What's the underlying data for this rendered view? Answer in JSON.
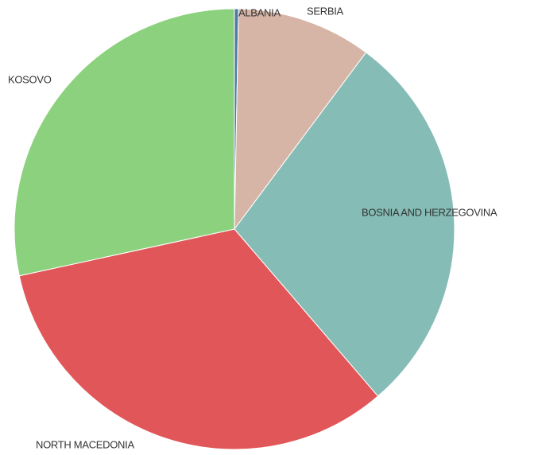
{
  "chart_data": {
    "type": "pie",
    "categories": [
      "ALBANIA",
      "SERBIA",
      "BOSNIA AND HERZEGOVINA",
      "NORTH MACEDONIA",
      "KOSOVO"
    ],
    "values": [
      0.3,
      9.9,
      28.5,
      32.9,
      28.4
    ],
    "colors": [
      "#4e79a7",
      "#d7b5a6",
      "#86bcb6",
      "#e15759",
      "#8cd17d"
    ]
  }
}
